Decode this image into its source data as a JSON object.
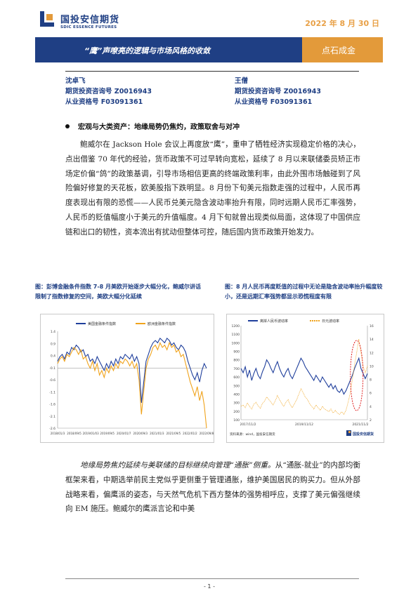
{
  "header": {
    "brand_cn": "国投安信期货",
    "brand_en": "SDIC ESSENCE FUTURES",
    "date": "2022 年 8 月 30 日"
  },
  "banner": {
    "title": "“鹰”声嘹亮的逻辑与市场风格的收敛",
    "tag": "点石成金"
  },
  "authors": [
    {
      "name": "沈卓飞",
      "qual1": "期货投资咨询号 Z0016943",
      "qual2": "从业资格号 F03091361"
    },
    {
      "name": "王僧",
      "qual1": "期货投资咨询号 Z0016943",
      "qual2": "从业资格号 F03091361"
    }
  ],
  "section_title": "宏观与大类资产：地缘局势仍焦灼，政策取舍与对冲",
  "paragraph1": "鲍威尔在 Jackson Hole 会议上再度放“鹰”，重申了牺牲经济实现稳定价格的决心，点出借鉴 70 年代的经验，货币政策不可过早转向宽松，延续了 8 月以来联储委员矫正市场定价偏“鸽”的政策基调，引导市场相信更高的终端政策利率，由此外围市场触碰到了风险偏好修复的天花板，欧美股指下跌明显。8 月份下旬美元指数走强的过程中，人民币再度表现出有限的恐慌——人民币兑美元隐含波动率抬升有限，同时远期人民币汇率强势，人民币的贬值幅度小于美元的升值幅度。4 月下旬就曾出现类似局面，这体现了中国供应链和出口的韧性，资本流出有扰动但整体可控，随后国内货币政策开始发力。",
  "figures": [
    {
      "caption": "图：彭博金融条件指数 7-8 月美欧开始逐步大幅分化，鲍威尔讲话限制了指数修复的空间，美欧大幅分化延续"
    },
    {
      "caption": "图：8 月人民币再度贬值的过程中无论是隐含波动率抬升幅度较小，还是远期汇率强势都显示恐慌程度有限",
      "source": "资料来源：wind，国投安信期货"
    }
  ],
  "paragraph2_lead": "地缘局势焦灼延续与美联储的目标继续向管理“通胀”侧重。",
  "paragraph2_body": "从“通胀-就业”的内部均衡框架来看，中期选举前民主党似乎更侧重于管理通胀，维护美国居民的购买力。但从外部战略来看，偏鹰派的姿态，与天然气危机下西方整体的强势相呼应，支撑了美元偏强继续向 EM 施压。鲍威尔的鹰派言论和中美",
  "footer": "- 1 -",
  "chart_data": [
    {
      "type": "line",
      "title": "",
      "legend_position": "top",
      "series": [
        {
          "name": "美国金融条件指数",
          "color": "#1f3f9c",
          "values": [
            0.3,
            0.5,
            0.6,
            0.4,
            0.7,
            0.6,
            0.9,
            0.8,
            1.0,
            0.9,
            0.7,
            0.8,
            0.5,
            0.6,
            0.3,
            0.4,
            0.2,
            0.5,
            0.3,
            0.1,
            -0.1,
            0.2,
            0.0,
            0.3,
            0.1,
            0.4,
            0.2,
            0.5,
            0.4,
            0.6,
            0.5,
            0.4,
            0.6,
            0.3,
            0.5,
            0.2,
            -1.5,
            -0.6,
            0.3,
            0.6,
            0.9,
            1.1,
            1.2,
            1.1,
            1.3,
            1.2,
            1.1,
            1.3,
            1.2,
            1.0,
            1.1,
            0.9,
            0.8,
            1.0,
            0.9,
            0.7,
            0.3,
            0.0,
            -0.3,
            -0.5,
            -0.2,
            -0.6,
            -0.1,
            0.2,
            0.0
          ]
        },
        {
          "name": "欧洲金融条件指数",
          "color": "#f0a31c",
          "values": [
            0.2,
            0.4,
            0.5,
            0.3,
            0.6,
            0.5,
            0.7,
            0.9,
            0.8,
            0.6,
            0.8,
            0.4,
            0.5,
            0.2,
            0.0,
            0.3,
            -0.1,
            0.2,
            -0.3,
            -0.1,
            -0.4,
            0.0,
            -0.2,
            0.1,
            -0.1,
            0.2,
            0.0,
            0.3,
            0.2,
            0.4,
            0.3,
            0.1,
            0.3,
            0.0,
            0.2,
            -0.5,
            -2.0,
            -1.0,
            0.0,
            0.4,
            0.6,
            0.9,
            1.0,
            0.8,
            1.1,
            0.9,
            1.0,
            0.8,
            1.1,
            0.9,
            1.0,
            0.7,
            0.8,
            0.5,
            0.6,
            0.2,
            -0.2,
            -0.6,
            -0.9,
            -1.2,
            -0.8,
            -1.4,
            -1.0,
            -1.6,
            -2.6
          ]
        }
      ],
      "ylim": [
        -2.6,
        1.6
      ],
      "yticks": [
        "1.4",
        "0.9",
        "0.4",
        "-0.1",
        "-0.6",
        "-1.1",
        "-1.6",
        "-2.1",
        "-2.6"
      ],
      "xticks": [
        "2018/01/3",
        "2018/09/5",
        "2019/01/03",
        "2019/09/5",
        "2020/01/7",
        "2020/09/3",
        "2021/01/3",
        "2021/09/5",
        "2022/01/2",
        "2022/09/8"
      ]
    },
    {
      "type": "line",
      "title": "",
      "legend_position": "top",
      "series": [
        {
          "name": "离岸人民币波动率",
          "color": "#1f3f9c",
          "axis": "left",
          "values": [
            700,
            650,
            720,
            600,
            680,
            560,
            640,
            700,
            620,
            580,
            660,
            720,
            800,
            760,
            700,
            650,
            720,
            780,
            700,
            640,
            600,
            660,
            700,
            620,
            580,
            640,
            700,
            760,
            820,
            780,
            720,
            680,
            640,
            600,
            560,
            620,
            580,
            540,
            600,
            560,
            520,
            480,
            520,
            460,
            500,
            440,
            420,
            460,
            400,
            440,
            500,
            560,
            620,
            700,
            760,
            820,
            700,
            640,
            580,
            640
          ]
        },
        {
          "name": "日元波动率",
          "color": "#f0a31c",
          "axis": "right",
          "dotted": true,
          "values": [
            4,
            4.2,
            3.8,
            4.5,
            4.0,
            3.6,
            4.3,
            4.6,
            4.1,
            3.7,
            4.4,
            4.8,
            5.4,
            5.0,
            4.6,
            4.2,
            4.8,
            5.6,
            5.0,
            4.4,
            4.0,
            4.6,
            5.0,
            4.2,
            3.8,
            4.4,
            5.0,
            5.8,
            6.6,
            6.0,
            5.4,
            5.0,
            4.4,
            4.0,
            3.6,
            4.2,
            3.8,
            3.4,
            4.0,
            3.6,
            3.4,
            3.2,
            3.6,
            3.0,
            3.4,
            3.0,
            2.8,
            3.2,
            2.8,
            3.4,
            4.6,
            6.0,
            8.0,
            10.2,
            12.0,
            14.0,
            12.0,
            10.0,
            9.0,
            10.0
          ]
        }
      ],
      "ylim_left": [
        100,
        1200
      ],
      "ylim_right": [
        2,
        16
      ],
      "yticks_left": [
        "1200",
        "1100",
        "1000",
        "900",
        "800",
        "700",
        "600",
        "500",
        "400",
        "300",
        "200",
        "100"
      ],
      "yticks_right": [
        "16",
        "14",
        "12",
        "10",
        "8",
        "6",
        "4",
        "2"
      ],
      "xticks": [
        "2017/11/2",
        "2019/11/12",
        "2021/11/2"
      ],
      "annotation": "red dashed ellipse around recent spike"
    }
  ]
}
